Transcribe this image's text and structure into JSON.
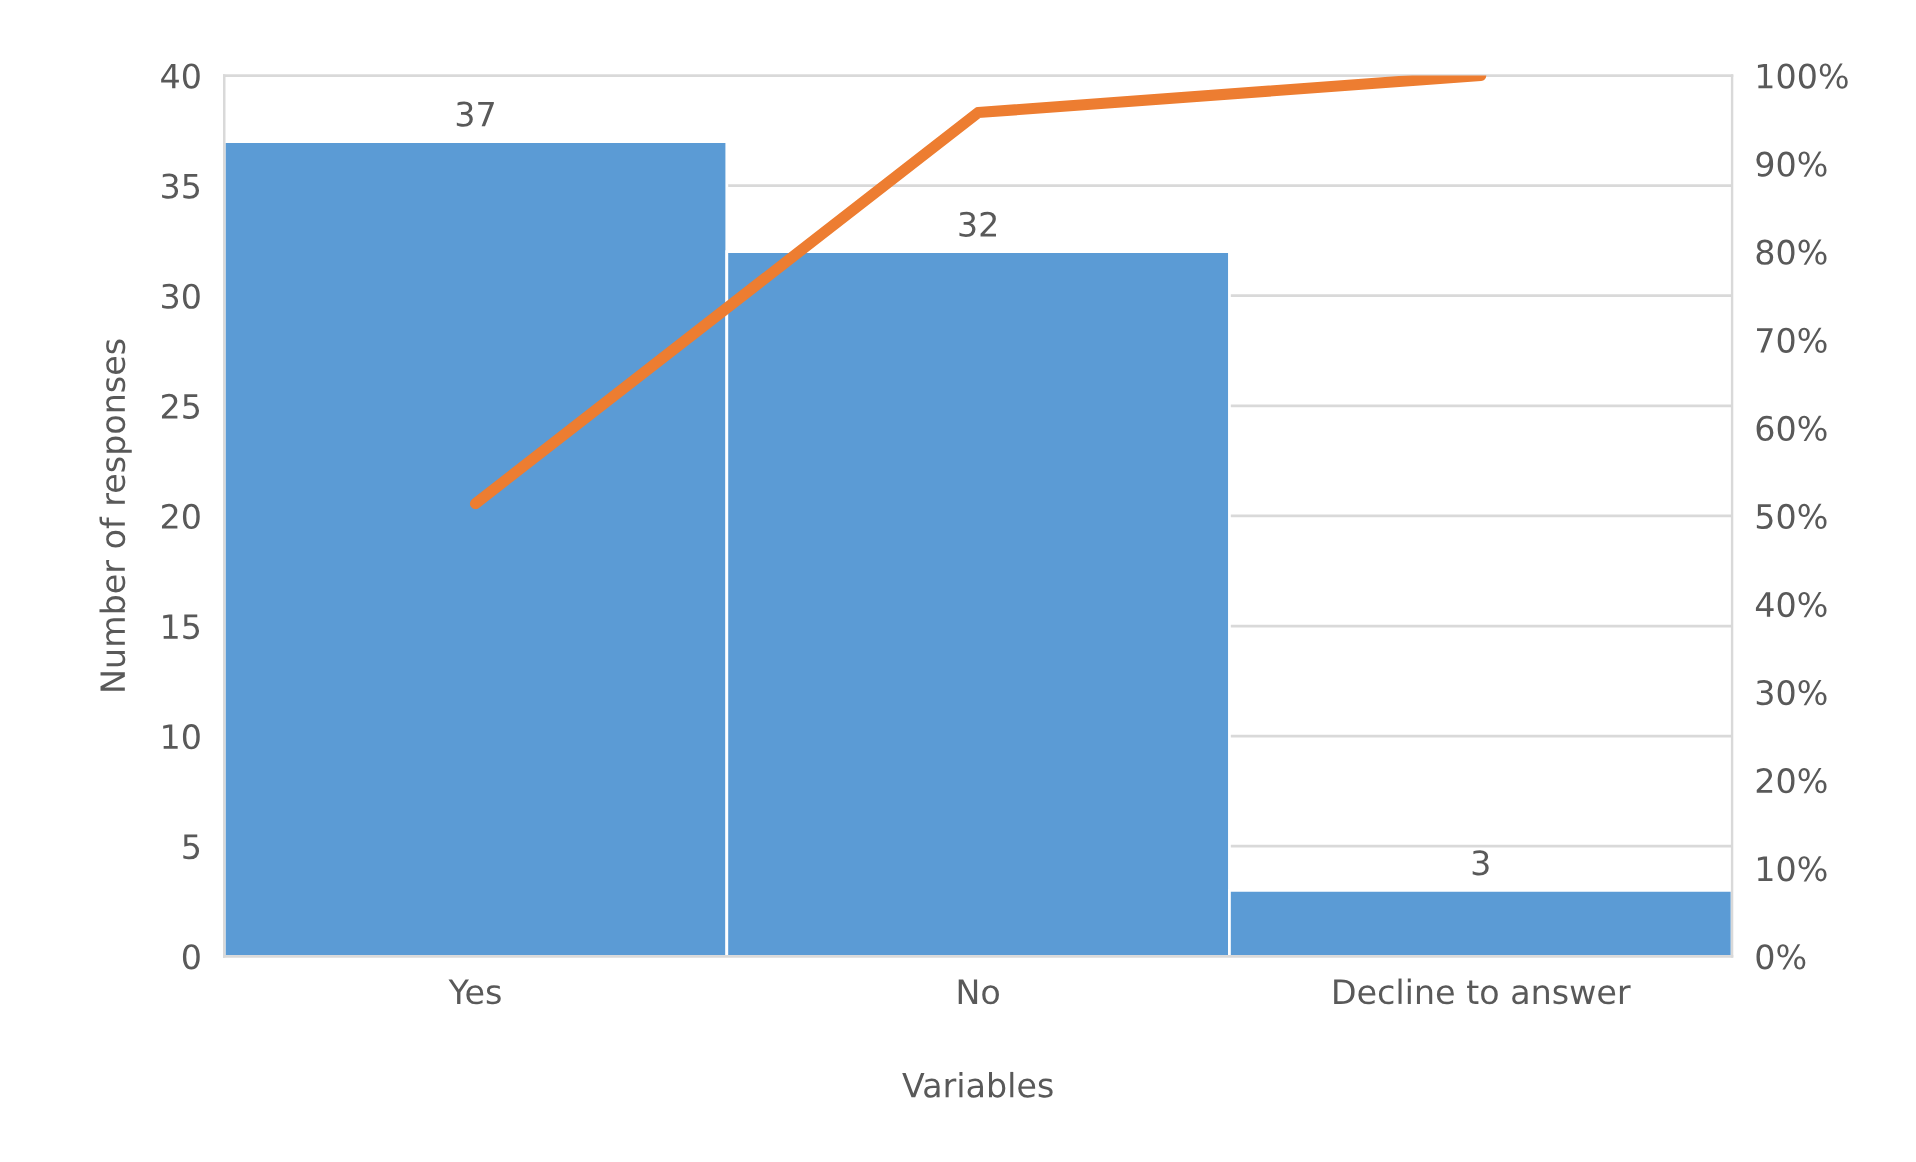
{
  "chart_data": {
    "type": "bar",
    "xlabel": "Variables",
    "ylabel": "Number of responses",
    "categories": [
      "Yes",
      "No",
      "Decline to answer"
    ],
    "series": [
      {
        "color": "#5b9bd5",
        "values": [
          37,
          32,
          3
        ],
        "value_labels": [
          "37",
          "32",
          "3"
        ]
      },
      {
        "type": "line",
        "axis": "y2",
        "color": "#ed7d31",
        "values": [
          51.4,
          95.8,
          100
        ]
      }
    ],
    "ylim": [
      0,
      40
    ],
    "yticks": [
      0,
      5,
      10,
      15,
      20,
      25,
      30,
      35,
      40
    ],
    "y2lim": [
      0,
      100
    ],
    "y2ticks": [
      {
        "value": 0,
        "label": "0%"
      },
      {
        "value": 10,
        "label": "10%"
      },
      {
        "value": 20,
        "label": "20%"
      },
      {
        "value": 30,
        "label": "30%"
      },
      {
        "value": 40,
        "label": "40%"
      },
      {
        "value": 50,
        "label": "50%"
      },
      {
        "value": 60,
        "label": "60%"
      },
      {
        "value": 70,
        "label": "70%"
      },
      {
        "value": 80,
        "label": "80%"
      },
      {
        "value": 90,
        "label": "90%"
      },
      {
        "value": 100,
        "label": "100%"
      }
    ],
    "grid": "y",
    "marker": "none",
    "line_style": "solid"
  }
}
